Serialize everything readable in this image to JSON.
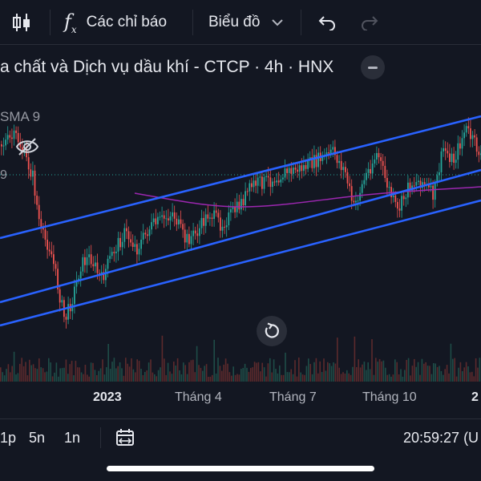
{
  "toolbar": {
    "candles_icon": "candles-icon",
    "indicators_label": "Các chỉ báo",
    "chart_type_label": "Biểu đồ",
    "undo_icon": "undo-icon",
    "redo_icon": "redo-icon"
  },
  "legend": {
    "title": "a chất và Dịch vụ dầu khí - CTCP · 4h · HNX",
    "sma_label": "SMA 9",
    "ma_fragment": "9"
  },
  "xaxis": {
    "labels": [
      "2023",
      "Tháng 4",
      "Tháng 7",
      "Tháng 10",
      "2"
    ]
  },
  "bottom": {
    "intervals": [
      "1p",
      "5n",
      "1n"
    ],
    "time": "20:59:27 (U"
  },
  "colors": {
    "background": "#131722",
    "up": "#26a69a",
    "down": "#ef5350",
    "trendline": "#2962ff",
    "sma": "#9c27b0",
    "price_line": "#26a69a"
  }
}
